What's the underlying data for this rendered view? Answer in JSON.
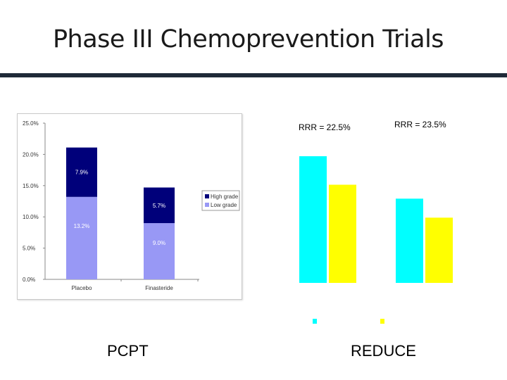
{
  "slide": {
    "title": "Phase III Chemoprevention Trials",
    "captions": {
      "left": "PCPT",
      "right": "REDUCE"
    }
  },
  "colors": {
    "title_rule": "#1f2a38",
    "high_grade": "#00007a",
    "low_grade": "#9898f5",
    "reduce_placebo": "#00ffff",
    "reduce_dutasteride": "#ffff00"
  },
  "chart_data": [
    {
      "type": "bar",
      "stacked": true,
      "categories": [
        "Placebo",
        "Finasteride"
      ],
      "series": [
        {
          "name": "Low grade",
          "values": [
            13.2,
            9.0
          ],
          "labels": [
            "13.2%",
            "9.0%"
          ]
        },
        {
          "name": "High grade",
          "values": [
            7.9,
            5.7
          ],
          "labels": [
            "7.9%",
            "5.7%"
          ]
        }
      ],
      "ylim": [
        0,
        25
      ],
      "yticks": [
        "0.0%",
        "5.0%",
        "10.0%",
        "15.0%",
        "20.0%",
        "25.0%"
      ],
      "legend": "right",
      "grid": false
    },
    {
      "type": "bar",
      "categories": [
        "",
        ""
      ],
      "series": [
        {
          "values": [
            20.0,
            13.3
          ]
        },
        {
          "values": [
            15.5,
            10.3
          ]
        }
      ],
      "ylim": [
        0,
        25
      ],
      "annotations": [
        "RRR = 22.5%",
        "RRR = 23.5%"
      ],
      "grid": false
    }
  ]
}
